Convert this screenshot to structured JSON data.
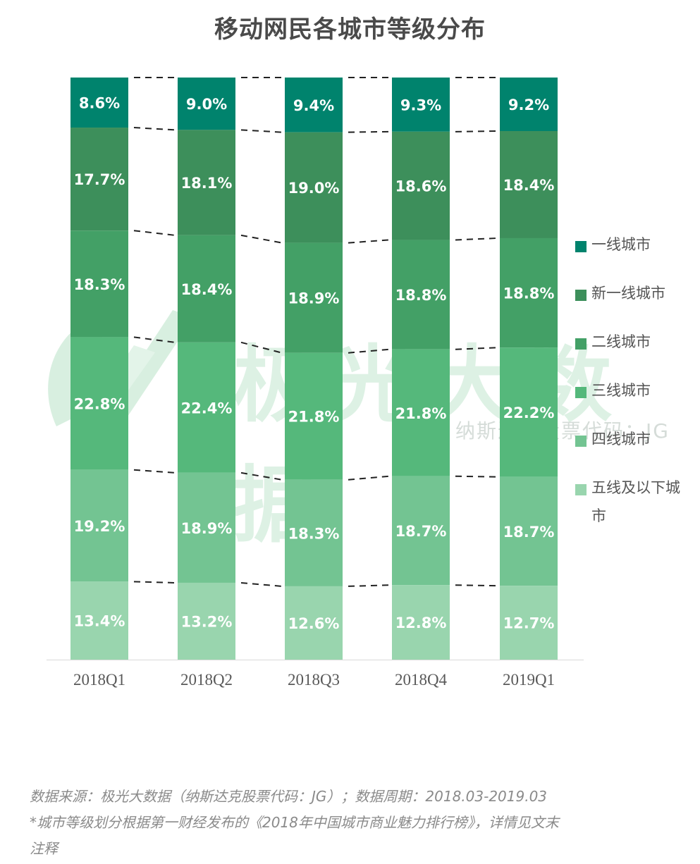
{
  "title": "移动网民各城市等级分布",
  "watermark": {
    "text": "极光大数据",
    "subtext": "纳斯达克股票代码：JG"
  },
  "legend": [
    {
      "label": "一线城市",
      "color": "#00836d"
    },
    {
      "label": "新一线城市",
      "color": "#3d8f5b"
    },
    {
      "label": "二线城市",
      "color": "#43a066"
    },
    {
      "label": "三线城市",
      "color": "#55b87b"
    },
    {
      "label": "四线城市",
      "color": "#73c492"
    },
    {
      "label": "五线及以下城市",
      "color": "#99d5ae"
    }
  ],
  "footnote": {
    "line1": "数据来源：极光大数据（纳斯达克股票代码：JG）；数据周期：2018.03-2019.03",
    "line2": "*城市等级划分根据第一财经发布的《2018年中国城市商业魅力排行榜》，详情见文末",
    "line3": "注释"
  },
  "chart_data": {
    "type": "bar",
    "stacked": true,
    "normalized": true,
    "title": "移动网民各城市等级分布",
    "xlabel": "",
    "ylabel": "",
    "ylim": [
      0,
      100
    ],
    "grid": false,
    "legend_position": "right",
    "categories": [
      "2018Q1",
      "2018Q2",
      "2018Q3",
      "2018Q4",
      "2019Q1"
    ],
    "series": [
      {
        "name": "一线城市",
        "color": "#00836d",
        "values": [
          8.6,
          9.0,
          9.4,
          9.3,
          9.2
        ],
        "labels": [
          "8.6%",
          "9.0%",
          "9.4%",
          "9.3%",
          "9.2%"
        ]
      },
      {
        "name": "新一线城市",
        "color": "#3d8f5b",
        "values": [
          17.7,
          18.1,
          19.0,
          18.6,
          18.4
        ],
        "labels": [
          "17.7%",
          "18.1%",
          "19.0%",
          "18.6%",
          "18.4%"
        ]
      },
      {
        "name": "二线城市",
        "color": "#43a066",
        "values": [
          18.3,
          18.4,
          18.9,
          18.8,
          18.8
        ],
        "labels": [
          "18.3%",
          "18.4%",
          "18.9%",
          "18.8%",
          "18.8%"
        ]
      },
      {
        "name": "三线城市",
        "color": "#55b87b",
        "values": [
          22.8,
          22.4,
          21.8,
          21.8,
          22.2
        ],
        "labels": [
          "22.8%",
          "22.4%",
          "21.8%",
          "21.8%",
          "22.2%"
        ]
      },
      {
        "name": "四线城市",
        "color": "#73c492",
        "values": [
          19.2,
          18.9,
          18.3,
          18.7,
          18.7
        ],
        "labels": [
          "19.2%",
          "18.9%",
          "18.3%",
          "18.7%",
          "18.7%"
        ]
      },
      {
        "name": "五线及以下城市",
        "color": "#99d5ae",
        "values": [
          13.4,
          13.2,
          12.6,
          12.8,
          12.7
        ],
        "labels": [
          "13.4%",
          "13.2%",
          "12.6%",
          "12.8%",
          "12.7%"
        ]
      }
    ]
  }
}
